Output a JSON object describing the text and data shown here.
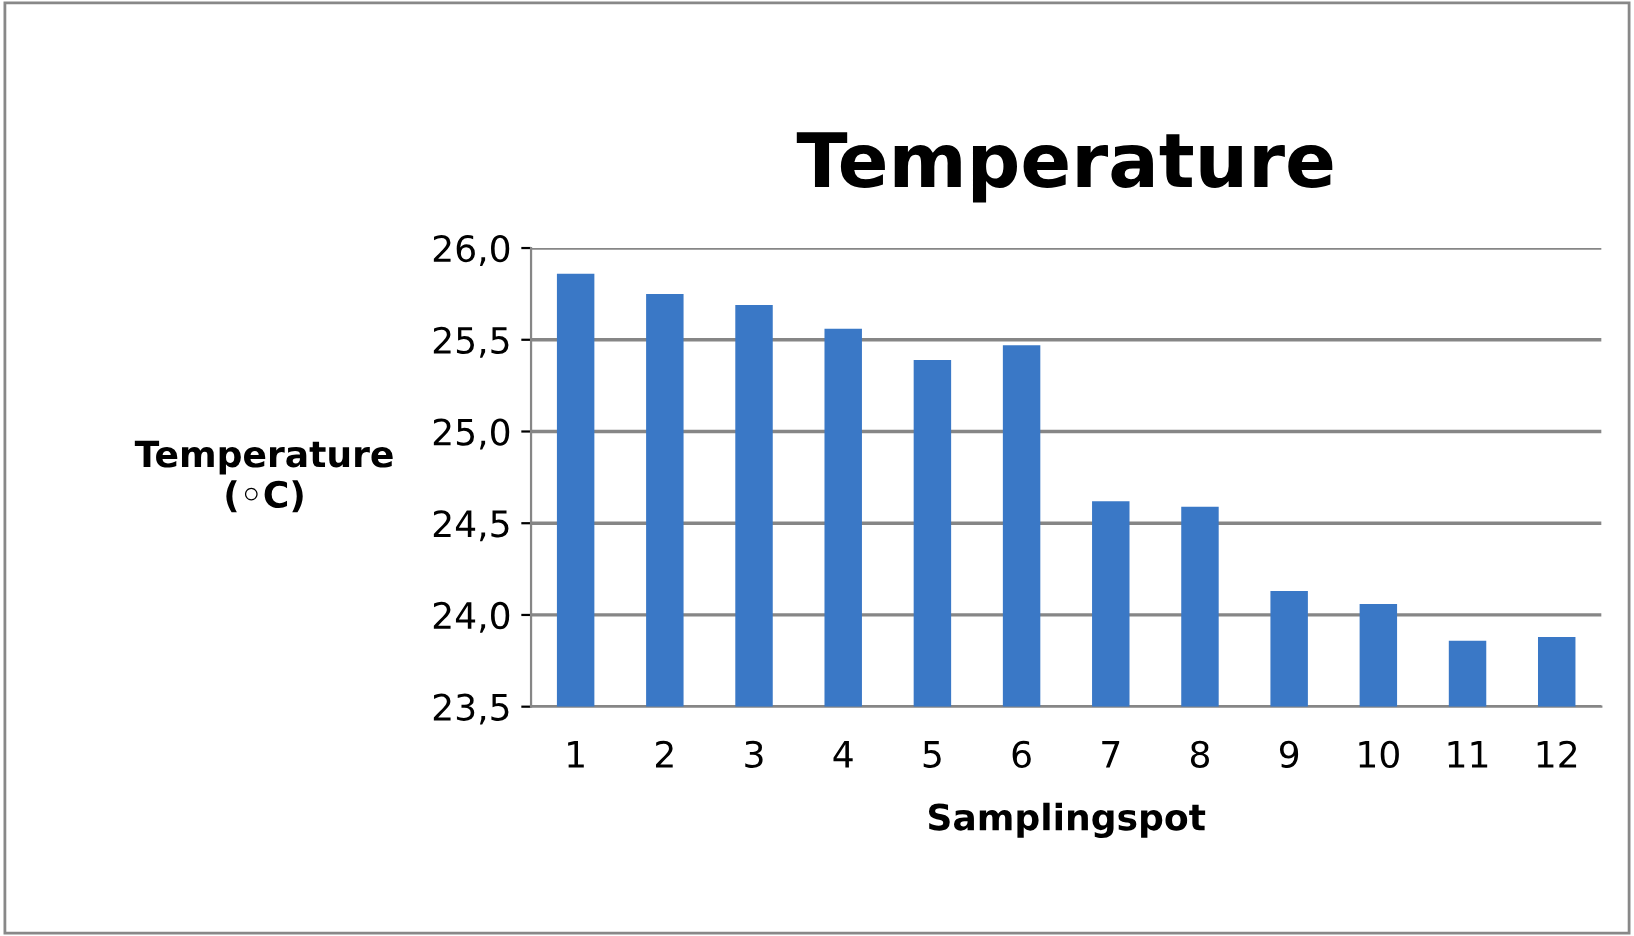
{
  "chart_data": {
    "type": "bar",
    "title": "Temperature",
    "xlabel": "Samplingspot",
    "ylabel": "Temperature\n(◦C)",
    "categories": [
      "1",
      "2",
      "3",
      "4",
      "5",
      "6",
      "7",
      "8",
      "9",
      "10",
      "11",
      "12"
    ],
    "values": [
      25.86,
      25.75,
      25.69,
      25.56,
      25.39,
      25.47,
      24.62,
      24.59,
      24.13,
      24.06,
      23.86,
      23.88
    ],
    "color": "#3a78c6",
    "ylim": [
      23.5,
      26.0
    ],
    "yticks": [
      {
        "value": 23.5,
        "label": "23,5"
      },
      {
        "value": 24.0,
        "label": "24,0"
      },
      {
        "value": 24.5,
        "label": "24,5"
      },
      {
        "value": 25.0,
        "label": "25,0"
      },
      {
        "value": 25.5,
        "label": "25,5"
      },
      {
        "value": 26.0,
        "label": "26,0"
      }
    ],
    "grid": "y"
  }
}
